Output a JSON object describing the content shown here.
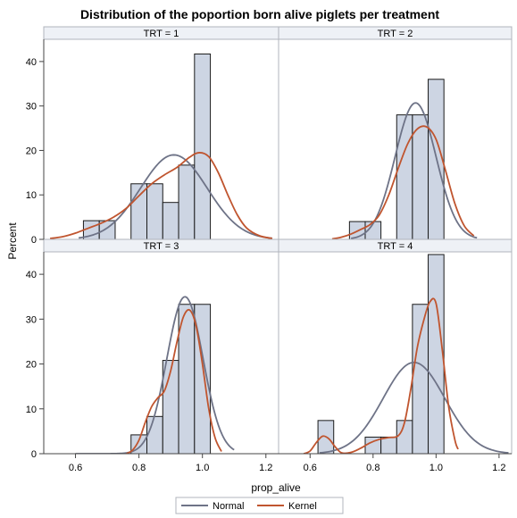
{
  "chart_data": {
    "type": "histogram",
    "title": "Distribution of the poportion born alive piglets per treatment",
    "xlabel": "prop_alive",
    "ylabel": "Percent",
    "xlim": [
      0.5,
      1.24
    ],
    "ylim": [
      0,
      45
    ],
    "x_ticks": [
      0.6,
      0.8,
      1.0,
      1.2
    ],
    "x_tick_labels": [
      "0.6",
      "0.8",
      "1.0",
      "1.2"
    ],
    "y_ticks": [
      0,
      10,
      20,
      30,
      40
    ],
    "y_tick_labels": [
      "0",
      "10",
      "20",
      "30",
      "40"
    ],
    "grid": false,
    "legend_position": "bottom-center",
    "legend": [
      {
        "name": "Normal",
        "color": "#6e7387"
      },
      {
        "name": "Kernel",
        "color": "#c0552f"
      }
    ],
    "colors": {
      "bar_fill": "#cdd5e3",
      "bar_stroke": "#1a1a1a",
      "header_fill": "#eef1f6",
      "frame": "#b0b4bc"
    },
    "panels": [
      {
        "label": "TRT = 1",
        "bins": [
          {
            "x0": 0.625,
            "x1": 0.675,
            "value": 4.2
          },
          {
            "x0": 0.675,
            "x1": 0.725,
            "value": 4.2
          },
          {
            "x0": 0.775,
            "x1": 0.825,
            "value": 12.5
          },
          {
            "x0": 0.825,
            "x1": 0.875,
            "value": 12.5
          },
          {
            "x0": 0.875,
            "x1": 0.925,
            "value": 8.3
          },
          {
            "x0": 0.925,
            "x1": 0.975,
            "value": 16.7
          },
          {
            "x0": 0.975,
            "x1": 1.025,
            "value": 41.7
          }
        ],
        "normal": {
          "mean": 0.91,
          "sd": 0.105,
          "x_range": [
            0.61,
            1.22
          ]
        },
        "kernel": [
          [
            0.52,
            0.2
          ],
          [
            0.56,
            0.6
          ],
          [
            0.6,
            1.4
          ],
          [
            0.64,
            2.5
          ],
          [
            0.68,
            3.6
          ],
          [
            0.72,
            5.0
          ],
          [
            0.76,
            7.0
          ],
          [
            0.8,
            9.8
          ],
          [
            0.84,
            12.5
          ],
          [
            0.88,
            14.5
          ],
          [
            0.92,
            16.2
          ],
          [
            0.96,
            18.5
          ],
          [
            0.99,
            19.5
          ],
          [
            1.02,
            18.6
          ],
          [
            1.05,
            15.0
          ],
          [
            1.08,
            10.0
          ],
          [
            1.11,
            5.5
          ],
          [
            1.14,
            2.5
          ],
          [
            1.18,
            0.8
          ],
          [
            1.22,
            0.2
          ]
        ]
      },
      {
        "label": "TRT = 2",
        "bins": [
          {
            "x0": 0.725,
            "x1": 0.775,
            "value": 4.0
          },
          {
            "x0": 0.775,
            "x1": 0.825,
            "value": 4.0
          },
          {
            "x0": 0.875,
            "x1": 0.925,
            "value": 28.0
          },
          {
            "x0": 0.925,
            "x1": 0.975,
            "value": 28.0
          },
          {
            "x0": 0.975,
            "x1": 1.025,
            "value": 36.0
          }
        ],
        "normal": {
          "mean": 0.935,
          "sd": 0.065,
          "x_range": [
            0.73,
            1.13
          ]
        },
        "kernel": [
          [
            0.67,
            0.1
          ],
          [
            0.7,
            0.5
          ],
          [
            0.73,
            1.2
          ],
          [
            0.76,
            2.2
          ],
          [
            0.79,
            3.3
          ],
          [
            0.82,
            5.5
          ],
          [
            0.85,
            10.0
          ],
          [
            0.88,
            16.0
          ],
          [
            0.91,
            21.5
          ],
          [
            0.94,
            24.8
          ],
          [
            0.97,
            25.3
          ],
          [
            1.0,
            22.5
          ],
          [
            1.03,
            15.5
          ],
          [
            1.06,
            8.0
          ],
          [
            1.09,
            3.0
          ],
          [
            1.12,
            0.8
          ]
        ]
      },
      {
        "label": "TRT = 3",
        "bins": [
          {
            "x0": 0.775,
            "x1": 0.825,
            "value": 4.2
          },
          {
            "x0": 0.825,
            "x1": 0.875,
            "value": 8.3
          },
          {
            "x0": 0.875,
            "x1": 0.925,
            "value": 20.8
          },
          {
            "x0": 0.925,
            "x1": 0.975,
            "value": 33.3
          },
          {
            "x0": 0.975,
            "x1": 1.025,
            "value": 33.3
          }
        ],
        "normal": {
          "mean": 0.945,
          "sd": 0.057,
          "x_range": [
            0.6,
            1.1
          ]
        },
        "kernel": [
          [
            0.76,
            0.0
          ],
          [
            0.78,
            0.8
          ],
          [
            0.8,
            3.0
          ],
          [
            0.82,
            7.0
          ],
          [
            0.84,
            10.5
          ],
          [
            0.86,
            12.5
          ],
          [
            0.88,
            14.0
          ],
          [
            0.9,
            18.5
          ],
          [
            0.92,
            25.0
          ],
          [
            0.94,
            30.5
          ],
          [
            0.96,
            32.0
          ],
          [
            0.98,
            28.5
          ],
          [
            1.0,
            20.0
          ],
          [
            1.02,
            10.0
          ],
          [
            1.04,
            3.5
          ],
          [
            1.06,
            0.5
          ]
        ]
      },
      {
        "label": "TRT = 4",
        "bins": [
          {
            "x0": 0.625,
            "x1": 0.675,
            "value": 7.4
          },
          {
            "x0": 0.775,
            "x1": 0.825,
            "value": 3.7
          },
          {
            "x0": 0.825,
            "x1": 0.875,
            "value": 3.7
          },
          {
            "x0": 0.875,
            "x1": 0.925,
            "value": 7.4
          },
          {
            "x0": 0.925,
            "x1": 0.975,
            "value": 33.3
          },
          {
            "x0": 0.975,
            "x1": 1.025,
            "value": 44.4
          }
        ],
        "normal": {
          "mean": 0.93,
          "sd": 0.098,
          "x_range": [
            0.63,
            1.23
          ]
        },
        "kernel": [
          [
            0.58,
            0.0
          ],
          [
            0.6,
            0.6
          ],
          [
            0.62,
            2.5
          ],
          [
            0.64,
            3.9
          ],
          [
            0.66,
            3.3
          ],
          [
            0.68,
            1.5
          ],
          [
            0.7,
            0.2
          ],
          [
            0.73,
            0.3
          ],
          [
            0.76,
            1.2
          ],
          [
            0.79,
            2.4
          ],
          [
            0.82,
            3.2
          ],
          [
            0.85,
            3.6
          ],
          [
            0.88,
            4.0
          ],
          [
            0.9,
            7.0
          ],
          [
            0.92,
            14.5
          ],
          [
            0.94,
            23.5
          ],
          [
            0.96,
            29.5
          ],
          [
            0.98,
            33.8
          ],
          [
            1.0,
            33.5
          ],
          [
            1.02,
            23.0
          ],
          [
            1.04,
            10.5
          ],
          [
            1.06,
            3.0
          ],
          [
            1.07,
            1.0
          ]
        ]
      }
    ]
  }
}
